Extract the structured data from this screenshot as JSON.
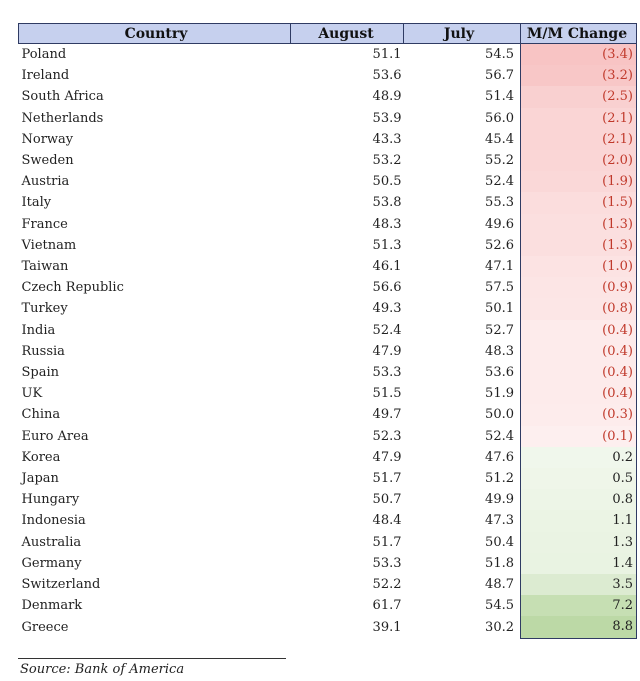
{
  "table": {
    "headers": [
      "Country",
      "August",
      "July",
      "M/M Change"
    ],
    "rows": [
      {
        "country": "Poland",
        "august": "51.1",
        "july": "54.5",
        "change": "(3.4)",
        "change_value": -3.4
      },
      {
        "country": "Ireland",
        "august": "53.6",
        "july": "56.7",
        "change": "(3.2)",
        "change_value": -3.2
      },
      {
        "country": "South Africa",
        "august": "48.9",
        "july": "51.4",
        "change": "(2.5)",
        "change_value": -2.5
      },
      {
        "country": "Netherlands",
        "august": "53.9",
        "july": "56.0",
        "change": "(2.1)",
        "change_value": -2.1
      },
      {
        "country": "Norway",
        "august": "43.3",
        "july": "45.4",
        "change": "(2.1)",
        "change_value": -2.1
      },
      {
        "country": "Sweden",
        "august": "53.2",
        "july": "55.2",
        "change": "(2.0)",
        "change_value": -2.0
      },
      {
        "country": "Austria",
        "august": "50.5",
        "july": "52.4",
        "change": "(1.9)",
        "change_value": -1.9
      },
      {
        "country": "Italy",
        "august": "53.8",
        "july": "55.3",
        "change": "(1.5)",
        "change_value": -1.5
      },
      {
        "country": "France",
        "august": "48.3",
        "july": "49.6",
        "change": "(1.3)",
        "change_value": -1.3
      },
      {
        "country": "Vietnam",
        "august": "51.3",
        "july": "52.6",
        "change": "(1.3)",
        "change_value": -1.3
      },
      {
        "country": "Taiwan",
        "august": "46.1",
        "july": "47.1",
        "change": "(1.0)",
        "change_value": -1.0
      },
      {
        "country": "Czech Republic",
        "august": "56.6",
        "july": "57.5",
        "change": "(0.9)",
        "change_value": -0.9
      },
      {
        "country": "Turkey",
        "august": "49.3",
        "july": "50.1",
        "change": "(0.8)",
        "change_value": -0.8
      },
      {
        "country": "India",
        "august": "52.4",
        "july": "52.7",
        "change": "(0.4)",
        "change_value": -0.4
      },
      {
        "country": "Russia",
        "august": "47.9",
        "july": "48.3",
        "change": "(0.4)",
        "change_value": -0.4
      },
      {
        "country": "Spain",
        "august": "53.3",
        "july": "53.6",
        "change": "(0.4)",
        "change_value": -0.4
      },
      {
        "country": "UK",
        "august": "51.5",
        "july": "51.9",
        "change": "(0.4)",
        "change_value": -0.4
      },
      {
        "country": "China",
        "august": "49.7",
        "july": "50.0",
        "change": "(0.3)",
        "change_value": -0.3
      },
      {
        "country": "Euro Area",
        "august": "52.3",
        "july": "52.4",
        "change": "(0.1)",
        "change_value": -0.1
      },
      {
        "country": "Korea",
        "august": "47.9",
        "july": "47.6",
        "change": "0.2",
        "change_value": 0.2
      },
      {
        "country": "Japan",
        "august": "51.7",
        "july": "51.2",
        "change": "0.5",
        "change_value": 0.5
      },
      {
        "country": "Hungary",
        "august": "50.7",
        "july": "49.9",
        "change": "0.8",
        "change_value": 0.8
      },
      {
        "country": "Indonesia",
        "august": "48.4",
        "july": "47.3",
        "change": "1.1",
        "change_value": 1.1
      },
      {
        "country": "Australia",
        "august": "51.7",
        "july": "50.4",
        "change": "1.3",
        "change_value": 1.3
      },
      {
        "country": "Germany",
        "august": "53.3",
        "july": "51.8",
        "change": "1.4",
        "change_value": 1.4
      },
      {
        "country": "Switzerland",
        "august": "52.2",
        "july": "48.7",
        "change": "3.5",
        "change_value": 3.5
      },
      {
        "country": "Denmark",
        "august": "61.7",
        "july": "54.5",
        "change": "7.2",
        "change_value": 7.2
      },
      {
        "country": "Greece",
        "august": "39.1",
        "july": "30.2",
        "change": "8.8",
        "change_value": 8.8
      }
    ]
  },
  "source": "Source: Bank of America",
  "colors": {
    "header_bg": "#c6d0ee",
    "border": "#2f3b63",
    "negative_text": "#c0392b",
    "negative_fill": "#f8c4c4",
    "positive_fill": "#bcd9a6"
  }
}
